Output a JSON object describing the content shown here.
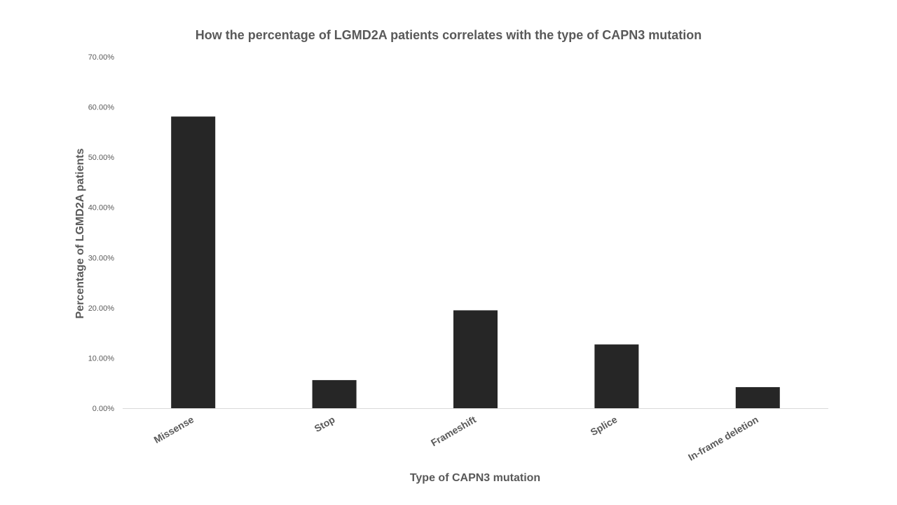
{
  "chart_data": {
    "type": "bar",
    "title": "How the percentage of LGMD2A patients correlates with the type of CAPN3 mutation",
    "xlabel": "Type of CAPN3 mutation",
    "ylabel": "Percentage of LGMD2A patients",
    "categories": [
      "Missense",
      "Stop",
      "Frameshift",
      "Splice",
      "In-frame deletion"
    ],
    "values": [
      58.1,
      5.6,
      19.5,
      12.7,
      4.2
    ],
    "ylim": [
      0,
      70
    ],
    "yticks": [
      "0.00%",
      "10.00%",
      "20.00%",
      "30.00%",
      "40.00%",
      "50.00%",
      "60.00%",
      "70.00%"
    ],
    "grid": false,
    "legend": "none",
    "colors": {
      "bar": "#262626",
      "text": "#595959",
      "axis": "#d9d9d9"
    }
  }
}
